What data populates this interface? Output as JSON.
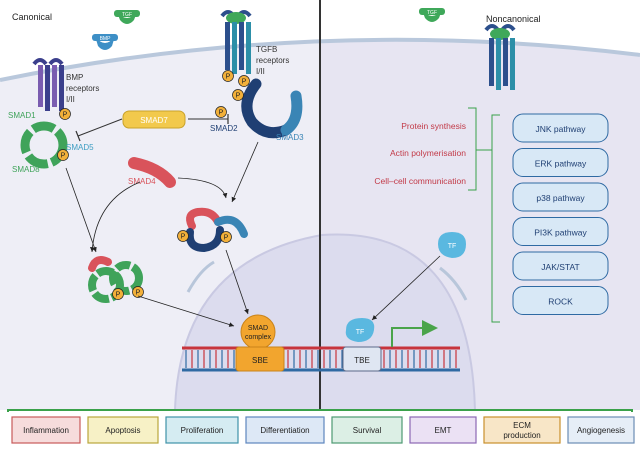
{
  "sections": {
    "canonical": "Canonical",
    "noncanonical": "Noncanonical"
  },
  "ligands": {
    "tgf_left": "TGF",
    "bmp": "BMP",
    "tgf_right": "TGF"
  },
  "receptors": {
    "bmp_line1": "BMP",
    "bmp_line2": "receptors",
    "bmp_line3": "I/II",
    "tgfb_line1": "TGFB",
    "tgfb_line2": "receptors",
    "tgfb_line3": "I/II"
  },
  "smads": {
    "smad1": "SMAD1",
    "smad5": "SMAD5",
    "smad8": "SMAD8",
    "smad7": "SMAD7",
    "smad2": "SMAD2",
    "smad3": "SMAD3",
    "smad4": "SMAD4"
  },
  "phospho": "P",
  "complex": {
    "line1": "SMAD",
    "line2": "complex"
  },
  "dna": {
    "sbe": "SBE",
    "tbe": "TBE",
    "tf_nuclear": "TF",
    "tf_cyto": "TF"
  },
  "processes": [
    "Protein synthesis",
    "Actin polymerisation",
    "Cell–cell communication"
  ],
  "pathways": [
    "JNK pathway",
    "ERK pathway",
    "p38 pathway",
    "PI3K pathway",
    "JAK/STAT",
    "ROCK"
  ],
  "outcomes": [
    {
      "label": "Inflammation",
      "fill": "#f6dcdc",
      "stroke": "#c95a5a"
    },
    {
      "label": "Apoptosis",
      "fill": "#f7f1c6",
      "stroke": "#b9a63c"
    },
    {
      "label": "Proliferation",
      "fill": "#d5ecf2",
      "stroke": "#3f93a8"
    },
    {
      "label": "Differentiation",
      "fill": "#dde8f6",
      "stroke": "#5d86bf"
    },
    {
      "label": "Survival",
      "fill": "#dcefe5",
      "stroke": "#4d9a72"
    },
    {
      "label": "EMT",
      "fill": "#ebe1f4",
      "stroke": "#8b68b3"
    },
    {
      "label": "ECM production",
      "fill": "#f8e6c7",
      "stroke": "#c98f2c"
    },
    {
      "label": "Angiogenesis",
      "fill": "#e6eef7",
      "stroke": "#6c8db5"
    }
  ],
  "colors": {
    "left_bg": "#eeeef6",
    "right_bg": "#e7e5f2",
    "nucleus": "#dcdcee",
    "membrane": "#b9c8dc",
    "pathway_fill": "#d8e8f6",
    "pathway_stroke": "#2f6aa3",
    "process_text": "#c23a48",
    "bracket": "#3aa14a"
  }
}
